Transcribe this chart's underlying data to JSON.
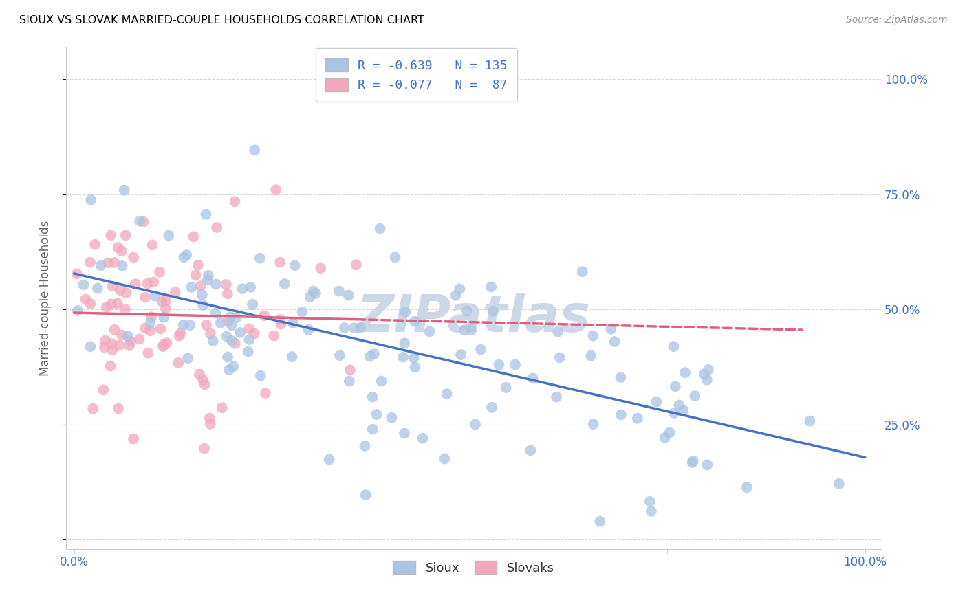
{
  "title": "SIOUX VS SLOVAK MARRIED-COUPLE HOUSEHOLDS CORRELATION CHART",
  "source": "Source: ZipAtlas.com",
  "ylabel": "Married-couple Households",
  "sioux_R": -0.639,
  "sioux_N": 135,
  "slovak_R": -0.077,
  "slovak_N": 87,
  "sioux_color": "#aac4e2",
  "sioux_edge_color": "#aac4e2",
  "sioux_line_color": "#4472c4",
  "slovak_color": "#f2a7bc",
  "slovak_edge_color": "#f2a7bc",
  "slovak_line_color": "#e06080",
  "legend_label_sioux": "Sioux",
  "legend_label_slovak": "Slovaks",
  "background_color": "#ffffff",
  "grid_color": "#cccccc",
  "title_color": "#000000",
  "axis_label_color": "#4472c4",
  "watermark_color": "#ccd8e8",
  "sioux_seed": 7,
  "slovak_seed": 13
}
